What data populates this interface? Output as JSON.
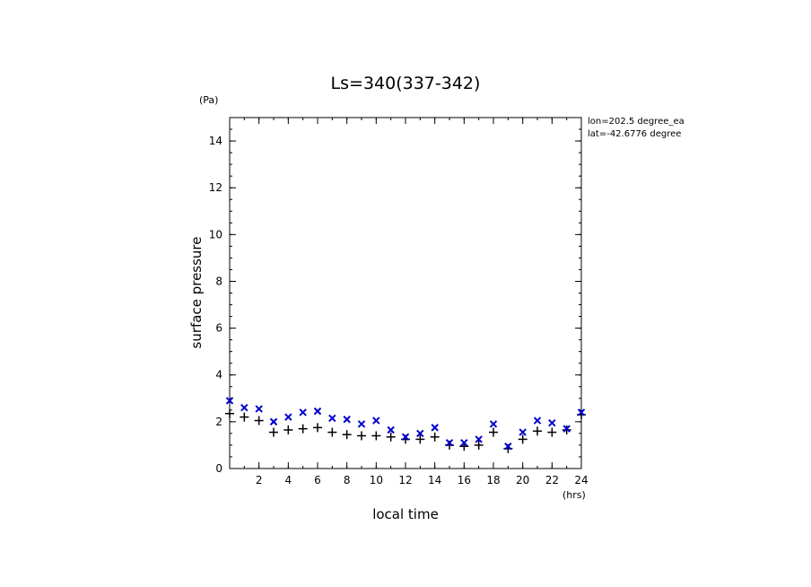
{
  "chart_data": {
    "type": "scatter",
    "title": "Ls=340(337-342)",
    "xlabel": "local time",
    "ylabel": "surface pressure",
    "x_unit": "(hrs)",
    "y_unit": "(Pa)",
    "xlim": [
      0,
      24
    ],
    "ylim": [
      0,
      15
    ],
    "x_ticks": [
      2,
      4,
      6,
      8,
      10,
      12,
      14,
      16,
      18,
      20,
      22,
      24
    ],
    "y_ticks": [
      0,
      2,
      4,
      6,
      8,
      10,
      12,
      14
    ],
    "grid": false,
    "annotations": [
      "lon=202.5 degree_ea",
      "lat=-42.6776 degree"
    ],
    "series": [
      {
        "marker": "plus",
        "color": "#000000",
        "x": [
          0,
          1,
          2,
          3,
          4,
          5,
          6,
          7,
          8,
          9,
          10,
          11,
          12,
          13,
          14,
          15,
          16,
          17,
          18,
          19,
          20,
          21,
          22,
          23,
          24
        ],
        "values": [
          2.35,
          2.2,
          2.05,
          1.55,
          1.65,
          1.7,
          1.75,
          1.55,
          1.45,
          1.4,
          1.4,
          1.35,
          1.25,
          1.25,
          1.35,
          1.0,
          0.95,
          1.0,
          1.55,
          0.85,
          1.25,
          1.6,
          1.55,
          1.65,
          2.3
        ]
      },
      {
        "marker": "cross",
        "color": "#0000cc",
        "x": [
          0,
          1,
          2,
          3,
          4,
          5,
          6,
          7,
          8,
          9,
          10,
          11,
          12,
          13,
          14,
          15,
          16,
          17,
          18,
          19,
          20,
          21,
          22,
          23,
          24
        ],
        "values": [
          2.9,
          2.6,
          2.55,
          2.0,
          2.2,
          2.4,
          2.45,
          2.15,
          2.1,
          1.9,
          2.05,
          1.65,
          1.35,
          1.5,
          1.75,
          1.1,
          1.1,
          1.25,
          1.9,
          0.95,
          1.55,
          2.05,
          1.95,
          1.7,
          2.4
        ]
      }
    ]
  }
}
